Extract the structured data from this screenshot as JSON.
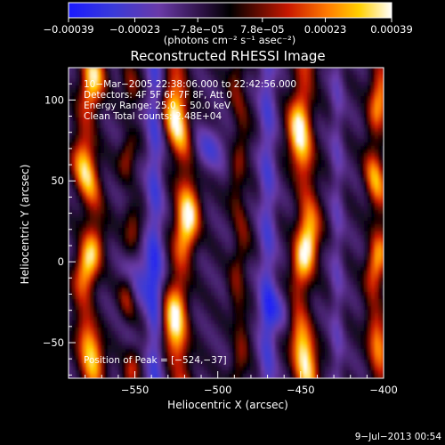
{
  "chart_data": {
    "type": "heatmap",
    "title": "Reconstructed RHESSI Image",
    "xlabel": "Heliocentric X (arcsec)",
    "ylabel": "Heliocentric Y (arcsec)",
    "xlim": [
      -590,
      -400
    ],
    "ylim": [
      -72,
      120
    ],
    "x_ticks": [
      {
        "value": -550,
        "label": "−550"
      },
      {
        "value": -500,
        "label": "−500"
      },
      {
        "value": -450,
        "label": "−450"
      },
      {
        "value": -400,
        "label": "−400"
      }
    ],
    "y_ticks": [
      {
        "value": -50,
        "label": "−50"
      },
      {
        "value": 0,
        "label": "0"
      },
      {
        "value": 50,
        "label": "50"
      },
      {
        "value": 100,
        "label": "100"
      }
    ],
    "colorbar": {
      "min": -0.00039,
      "max": 0.00039,
      "tick_labels": [
        "−0.00039",
        "−0.00023",
        "−7.8e−05",
        "7.8e−05",
        "0.00023",
        "0.00039"
      ],
      "tick_values": [
        -0.00039,
        -0.00023,
        -7.8e-05,
        7.8e-05,
        0.00023,
        0.00039
      ],
      "unit_label": "(photons cm⁻² s⁻¹ asec⁻²)"
    },
    "info_lines": [
      "10−Mar−2005 22:38:06.000 to 22:42:56.000",
      "Detectors: 4F 5F 6F 7F 8F, Att 0",
      "Energy Range: 25.0 − 50.0 keV",
      "Clean     Total counts: 2.48E+04"
    ],
    "peak_label": "Position of Peak = [−524,−37]",
    "footer_date": "9−Jul−2013 00:54"
  }
}
